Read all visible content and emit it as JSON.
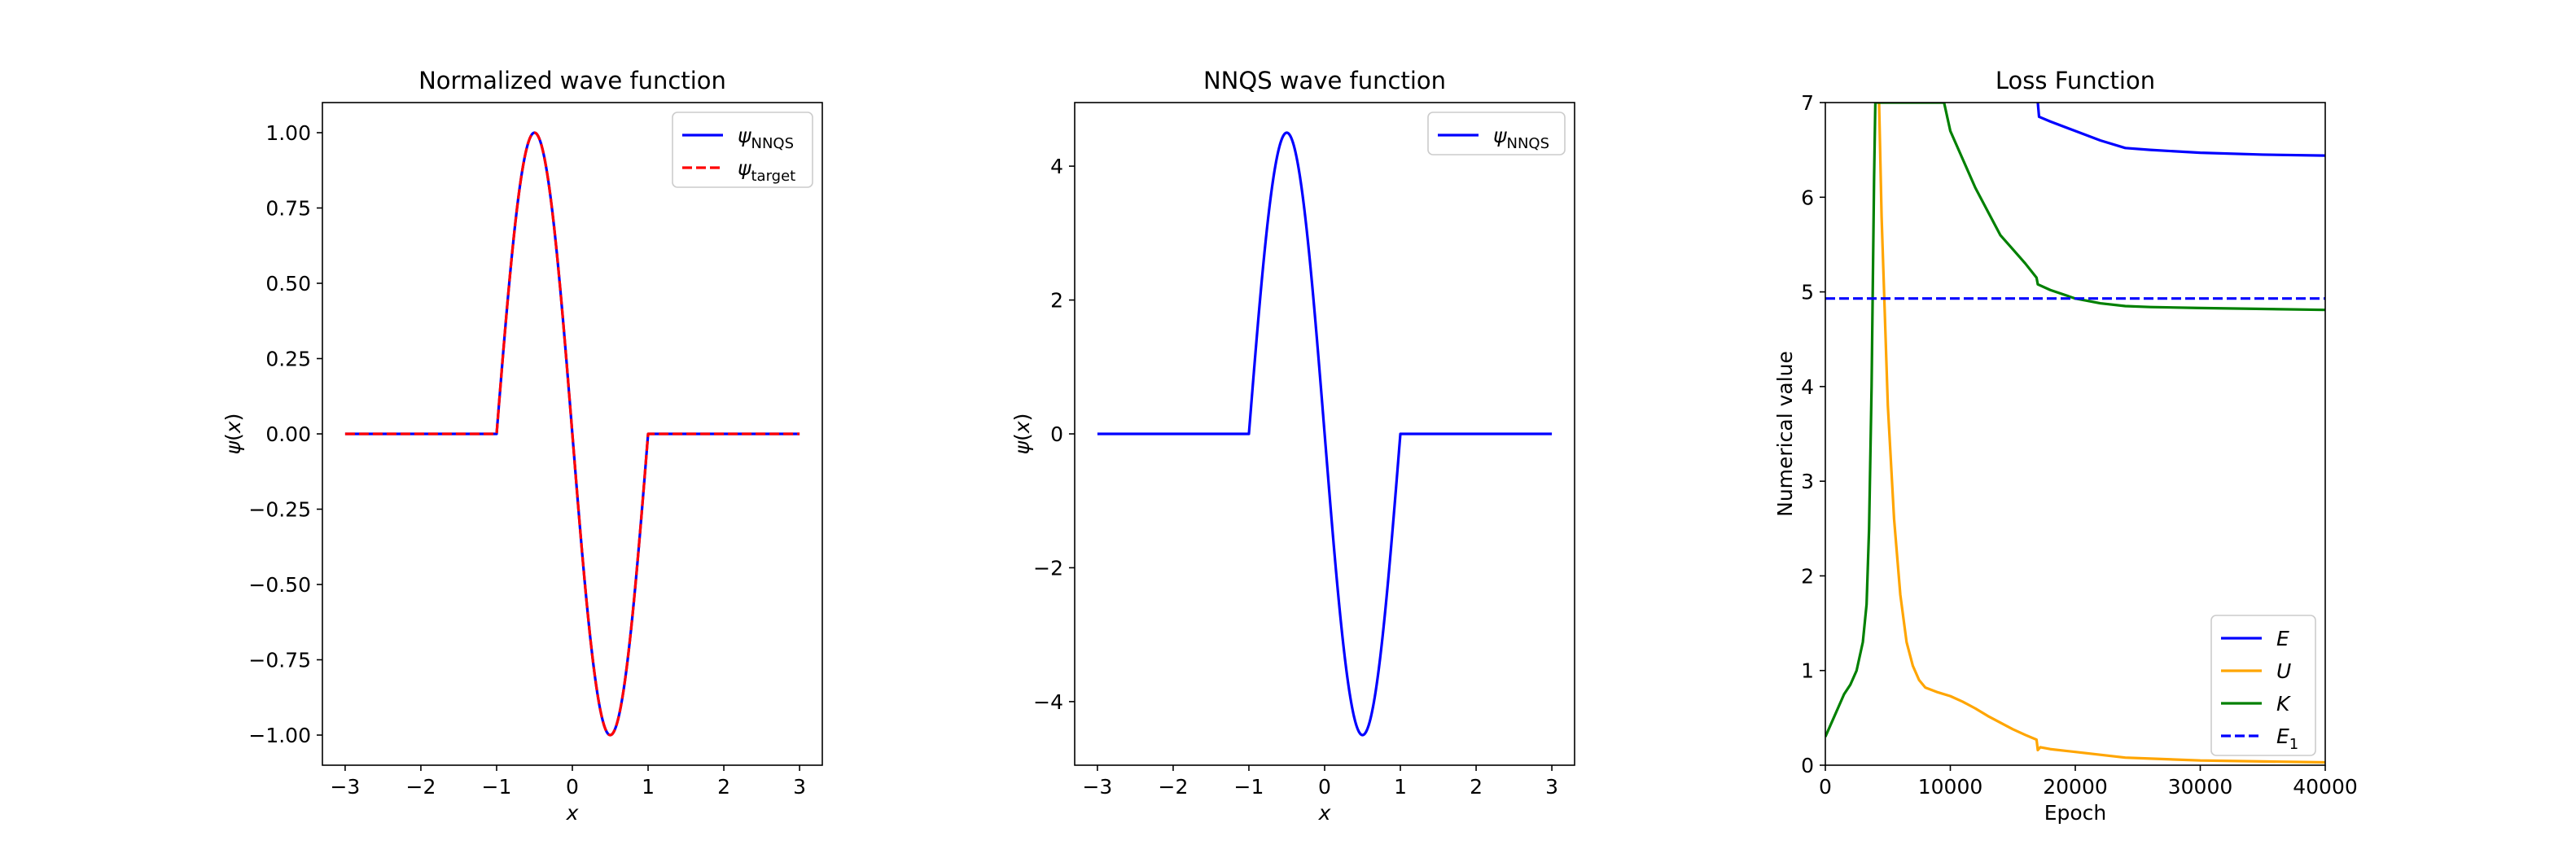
{
  "chart_data": [
    {
      "type": "line",
      "title": "Normalized wave function",
      "xlabel": "x",
      "ylabel": "ψ(x)",
      "xlim": [
        -3.3,
        3.3
      ],
      "ylim": [
        -1.1,
        1.1
      ],
      "xticks": [
        -3,
        -2,
        -1,
        0,
        1,
        2,
        3
      ],
      "xtick_labels": [
        "−3",
        "−2",
        "−1",
        "0",
        "1",
        "2",
        "3"
      ],
      "yticks": [
        -1.0,
        -0.75,
        -0.5,
        -0.25,
        0.0,
        0.25,
        0.5,
        0.75,
        1.0
      ],
      "ytick_labels": [
        "−1.00",
        "−0.75",
        "−0.50",
        "−0.25",
        "0.00",
        "0.25",
        "0.50",
        "0.75",
        "1.00"
      ],
      "legend_position": "top-right",
      "series": [
        {
          "name": "ψ",
          "subscript": "NNQS",
          "color": "#0000ff",
          "style": "solid",
          "function": "-sin(pi*x)",
          "domain": [
            -3,
            3
          ],
          "support": [
            -1,
            1
          ],
          "amplitude": 1.0
        },
        {
          "name": "ψ",
          "subscript": "target",
          "color": "#ff0000",
          "style": "dashed",
          "function": "-sin(pi*x)",
          "domain": [
            -3,
            3
          ],
          "support": [
            -1,
            1
          ],
          "amplitude": 1.0
        }
      ]
    },
    {
      "type": "line",
      "title": "NNQS wave function",
      "xlabel": "x",
      "ylabel": "ψ(x)",
      "xlim": [
        -3.3,
        3.3
      ],
      "ylim": [
        -4.95,
        4.95
      ],
      "xticks": [
        -3,
        -2,
        -1,
        0,
        1,
        2,
        3
      ],
      "xtick_labels": [
        "−3",
        "−2",
        "−1",
        "0",
        "1",
        "2",
        "3"
      ],
      "yticks": [
        -4,
        -2,
        0,
        2,
        4
      ],
      "ytick_labels": [
        "−4",
        "−2",
        "0",
        "2",
        "4"
      ],
      "legend_position": "top-right",
      "series": [
        {
          "name": "ψ",
          "subscript": "NNQS",
          "color": "#0000ff",
          "style": "solid",
          "function": "-sin(pi*x)",
          "domain": [
            -3,
            3
          ],
          "support": [
            -1,
            1
          ],
          "amplitude": 4.5
        }
      ]
    },
    {
      "type": "line",
      "title": "Loss Function",
      "xlabel": "Epoch",
      "ylabel": "Numerical value",
      "xlim": [
        0,
        40000
      ],
      "ylim": [
        0,
        7
      ],
      "xticks": [
        0,
        10000,
        20000,
        30000,
        40000
      ],
      "xtick_labels": [
        "0",
        "10000",
        "20000",
        "30000",
        "40000"
      ],
      "yticks": [
        0,
        1,
        2,
        3,
        4,
        5,
        6,
        7
      ],
      "ytick_labels": [
        "0",
        "1",
        "2",
        "3",
        "4",
        "5",
        "6",
        "7"
      ],
      "legend_position": "lower-right",
      "series": [
        {
          "name": "E",
          "color": "#0000ff",
          "style": "solid",
          "x": [
            17000,
            17100,
            18000,
            20000,
            22000,
            24000,
            26000,
            30000,
            35000,
            40000
          ],
          "y": [
            7.0,
            6.85,
            6.8,
            6.7,
            6.6,
            6.52,
            6.5,
            6.47,
            6.45,
            6.44
          ]
        },
        {
          "name": "U",
          "color": "#ffa500",
          "style": "solid",
          "x": [
            4300,
            4500,
            5000,
            5500,
            6000,
            6500,
            7000,
            7500,
            8000,
            9000,
            10000,
            11000,
            12000,
            13000,
            14000,
            15000,
            16000,
            16900,
            17000,
            17200,
            18000,
            20000,
            22000,
            24000,
            26000,
            30000,
            35000,
            40000
          ],
          "y": [
            7.0,
            5.8,
            3.8,
            2.6,
            1.8,
            1.3,
            1.05,
            0.9,
            0.82,
            0.77,
            0.73,
            0.67,
            0.6,
            0.52,
            0.45,
            0.38,
            0.32,
            0.27,
            0.16,
            0.19,
            0.17,
            0.14,
            0.11,
            0.08,
            0.07,
            0.05,
            0.04,
            0.03
          ]
        },
        {
          "name": "K",
          "color": "#008000",
          "style": "solid",
          "x": [
            0,
            500,
            1000,
            1500,
            2000,
            2500,
            3000,
            3300,
            3500,
            3700,
            3900,
            4000,
            9500,
            10000,
            11000,
            12000,
            13000,
            14000,
            15000,
            16000,
            16900,
            17000,
            18000,
            20000,
            22000,
            24000,
            26000,
            30000,
            35000,
            40000
          ],
          "y": [
            0.3,
            0.45,
            0.6,
            0.75,
            0.85,
            1.0,
            1.3,
            1.7,
            2.5,
            4.0,
            6.2,
            7.0,
            7.0,
            6.7,
            6.4,
            6.1,
            5.85,
            5.6,
            5.45,
            5.3,
            5.15,
            5.08,
            5.02,
            4.93,
            4.88,
            4.85,
            4.84,
            4.83,
            4.82,
            4.81
          ]
        },
        {
          "name": "E",
          "subscript": "1",
          "color": "#0000ff",
          "style": "dashed",
          "x": [
            0,
            40000
          ],
          "y": [
            4.93,
            4.93
          ]
        }
      ]
    }
  ]
}
